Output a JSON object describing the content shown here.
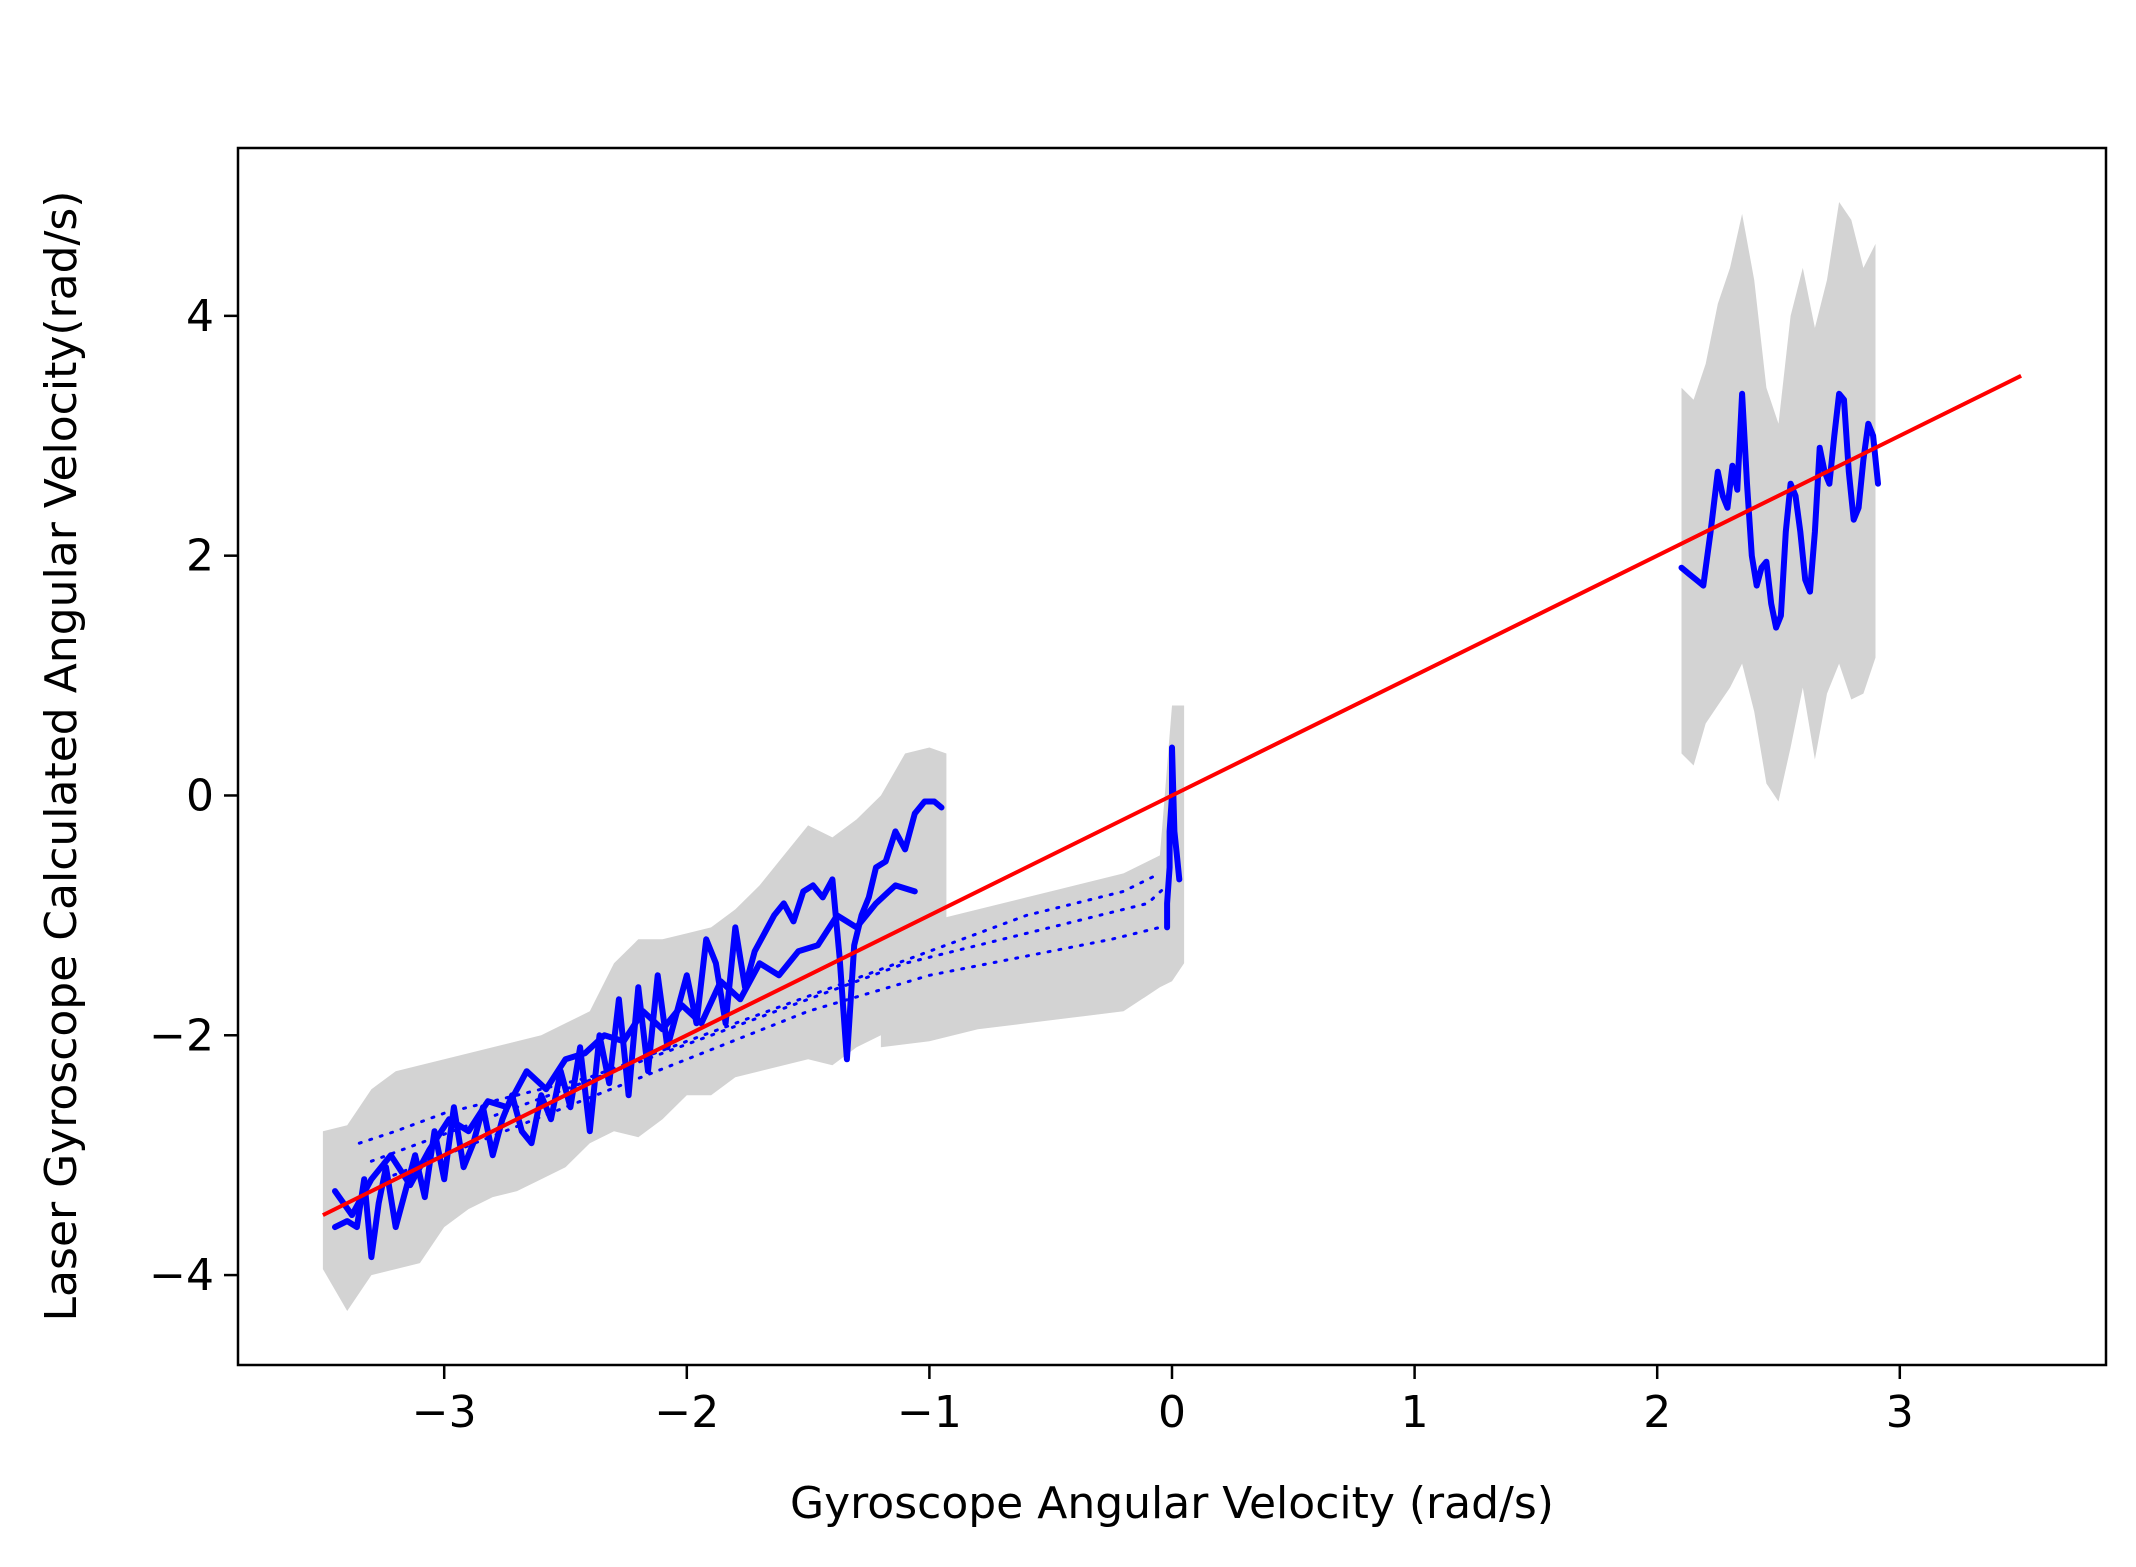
{
  "chart_data": {
    "type": "line",
    "title": "",
    "xlabel": "Gyroscope Angular Velocity (rad/s)",
    "ylabel": "Laser Gyroscope Calculated Angular Velocity(rad/s)",
    "xlim": [
      -3.85,
      3.85
    ],
    "ylim": [
      -4.75,
      5.4
    ],
    "x_ticks": [
      -3,
      -2,
      -1,
      0,
      1,
      2,
      3
    ],
    "x_tick_labels": [
      "−3",
      "−2",
      "−1",
      "0",
      "1",
      "2",
      "3"
    ],
    "y_ticks": [
      -4,
      -2,
      0,
      2,
      4
    ],
    "y_tick_labels": [
      "−4",
      "−2",
      "0",
      "2",
      "4"
    ],
    "grid": false,
    "legend": "none",
    "colors": {
      "band": "#d3d3d3",
      "measured": "#0000ff",
      "reference": "#ff0000"
    },
    "series": [
      {
        "role": "reference",
        "style": "line",
        "x": [
          -3.5,
          3.5
        ],
        "y": [
          -3.5,
          3.5
        ]
      },
      {
        "role": "band",
        "style": "band",
        "segments": [
          {
            "x": [
              -3.5,
              -3.4,
              -3.3,
              -3.2,
              -3.1,
              -3.0,
              -2.9,
              -2.8,
              -2.7,
              -2.6,
              -2.5,
              -2.4,
              -2.3,
              -2.2,
              -2.1,
              -2.0,
              -1.9,
              -1.8,
              -1.7,
              -1.6,
              -1.5,
              -1.4,
              -1.3,
              -1.2,
              -1.1,
              -1.0,
              -0.93
            ],
            "upper": [
              -2.8,
              -2.75,
              -2.45,
              -2.3,
              -2.25,
              -2.2,
              -2.15,
              -2.1,
              -2.05,
              -2.0,
              -1.9,
              -1.8,
              -1.4,
              -1.2,
              -1.2,
              -1.15,
              -1.1,
              -0.95,
              -0.75,
              -0.5,
              -0.25,
              -0.35,
              -0.2,
              0.0,
              0.35,
              0.4,
              0.35
            ],
            "lower": [
              -3.95,
              -4.3,
              -4.0,
              -3.95,
              -3.9,
              -3.6,
              -3.45,
              -3.35,
              -3.3,
              -3.2,
              -3.1,
              -2.9,
              -2.8,
              -2.85,
              -2.7,
              -2.5,
              -2.5,
              -2.35,
              -2.3,
              -2.25,
              -2.2,
              -2.25,
              -2.1,
              -2.0,
              -1.95,
              -1.95,
              -1.7
            ]
          },
          {
            "x": [
              -1.2,
              -1.0,
              -0.8,
              -0.6,
              -0.4,
              -0.2,
              -0.05,
              0.0,
              0.05
            ],
            "upper": [
              -1.15,
              -1.05,
              -0.95,
              -0.85,
              -0.75,
              -0.65,
              -0.5,
              0.75,
              0.75
            ],
            "lower": [
              -2.1,
              -2.05,
              -1.95,
              -1.9,
              -1.85,
              -1.8,
              -1.6,
              -1.55,
              -1.4
            ]
          },
          {
            "x": [
              2.1,
              2.15,
              2.2,
              2.25,
              2.3,
              2.35,
              2.4,
              2.45,
              2.5,
              2.55,
              2.6,
              2.65,
              2.7,
              2.75,
              2.8,
              2.85,
              2.9
            ],
            "upper": [
              3.4,
              3.3,
              3.6,
              4.1,
              4.4,
              4.85,
              4.3,
              3.4,
              3.1,
              4.0,
              4.4,
              3.9,
              4.3,
              4.95,
              4.8,
              4.4,
              4.6
            ],
            "lower": [
              0.35,
              0.25,
              0.6,
              0.75,
              0.9,
              1.1,
              0.7,
              0.1,
              -0.05,
              0.4,
              0.9,
              0.3,
              0.85,
              1.1,
              0.8,
              0.85,
              1.15
            ]
          }
        ]
      },
      {
        "role": "measured",
        "style": "thick",
        "x": [
          -3.45,
          -3.4,
          -3.36,
          -3.33,
          -3.3,
          -3.27,
          -3.24,
          -3.2,
          -3.16,
          -3.12,
          -3.08,
          -3.04,
          -3.0,
          -2.96,
          -2.92,
          -2.88,
          -2.84,
          -2.8,
          -2.76,
          -2.72,
          -2.68,
          -2.64,
          -2.6,
          -2.56,
          -2.52,
          -2.48,
          -2.44,
          -2.4,
          -2.36,
          -2.32,
          -2.28,
          -2.24,
          -2.2,
          -2.16,
          -2.12,
          -2.08,
          -2.04,
          -2.0,
          -1.96,
          -1.92,
          -1.88,
          -1.84,
          -1.8,
          -1.76,
          -1.72,
          -1.68,
          -1.64,
          -1.6,
          -1.56,
          -1.52,
          -1.48,
          -1.44,
          -1.4,
          -1.37,
          -1.34,
          -1.31,
          -1.28,
          -1.25,
          -1.22,
          -1.18,
          -1.14,
          -1.1,
          -1.06,
          -1.02,
          -0.98,
          -0.95
        ],
        "y": [
          -3.6,
          -3.55,
          -3.6,
          -3.2,
          -3.85,
          -3.4,
          -3.1,
          -3.6,
          -3.3,
          -3.0,
          -3.35,
          -2.8,
          -3.2,
          -2.6,
          -3.1,
          -2.9,
          -2.6,
          -3.0,
          -2.7,
          -2.5,
          -2.8,
          -2.9,
          -2.5,
          -2.7,
          -2.3,
          -2.6,
          -2.1,
          -2.8,
          -2.0,
          -2.4,
          -1.7,
          -2.5,
          -1.6,
          -2.3,
          -1.5,
          -2.1,
          -1.8,
          -1.5,
          -1.9,
          -1.2,
          -1.4,
          -1.9,
          -1.1,
          -1.6,
          -1.3,
          -1.15,
          -1.0,
          -0.9,
          -1.05,
          -0.8,
          -0.75,
          -0.85,
          -0.7,
          -1.35,
          -2.2,
          -1.25,
          -1.0,
          -0.85,
          -0.6,
          -0.55,
          -0.3,
          -0.45,
          -0.15,
          -0.05,
          -0.05,
          -0.1
        ]
      },
      {
        "role": "measured",
        "style": "thick",
        "x": [
          -3.45,
          -3.38,
          -3.3,
          -3.22,
          -3.14,
          -3.06,
          -2.98,
          -2.9,
          -2.82,
          -2.74,
          -2.66,
          -2.58,
          -2.5,
          -2.42,
          -2.34,
          -2.26,
          -2.18,
          -2.1,
          -2.02,
          -1.94,
          -1.86,
          -1.78,
          -1.7,
          -1.62,
          -1.54,
          -1.46,
          -1.38,
          -1.3,
          -1.22,
          -1.14,
          -1.06
        ],
        "y": [
          -3.3,
          -3.5,
          -3.2,
          -3.0,
          -3.25,
          -2.95,
          -2.7,
          -2.8,
          -2.55,
          -2.6,
          -2.3,
          -2.45,
          -2.2,
          -2.15,
          -2.0,
          -2.05,
          -1.8,
          -1.95,
          -1.75,
          -1.9,
          -1.55,
          -1.7,
          -1.4,
          -1.5,
          -1.3,
          -1.25,
          -1.0,
          -1.1,
          -0.9,
          -0.75,
          -0.8
        ]
      },
      {
        "role": "measured",
        "style": "dotted",
        "x": [
          -3.35,
          -3.2,
          -3.0,
          -2.8,
          -2.6,
          -2.4,
          -2.2,
          -2.0,
          -1.8,
          -1.6,
          -1.4,
          -1.2,
          -1.0,
          -0.8,
          -0.6,
          -0.4,
          -0.2,
          -0.05
        ],
        "y": [
          -2.9,
          -2.8,
          -2.65,
          -2.55,
          -2.45,
          -2.35,
          -2.2,
          -2.05,
          -1.9,
          -1.75,
          -1.6,
          -1.45,
          -1.3,
          -1.15,
          -1.0,
          -0.9,
          -0.8,
          -0.65
        ]
      },
      {
        "role": "measured",
        "style": "dotted",
        "x": [
          -3.3,
          -3.1,
          -2.9,
          -2.7,
          -2.5,
          -2.3,
          -2.1,
          -1.9,
          -1.7,
          -1.5,
          -1.3,
          -1.1,
          -0.9,
          -0.7,
          -0.5,
          -0.3,
          -0.1,
          -0.02
        ],
        "y": [
          -3.05,
          -2.9,
          -2.75,
          -2.6,
          -2.45,
          -2.3,
          -2.15,
          -2.0,
          -1.85,
          -1.7,
          -1.55,
          -1.4,
          -1.3,
          -1.2,
          -1.1,
          -1.0,
          -0.9,
          -0.75
        ]
      },
      {
        "role": "measured",
        "style": "dotted",
        "x": [
          -3.25,
          -3.0,
          -2.75,
          -2.5,
          -2.25,
          -2.0,
          -1.75,
          -1.5,
          -1.25,
          -1.0,
          -0.75,
          -0.5,
          -0.25,
          -0.05
        ],
        "y": [
          -3.2,
          -3.0,
          -2.8,
          -2.6,
          -2.4,
          -2.2,
          -2.0,
          -1.8,
          -1.65,
          -1.5,
          -1.4,
          -1.3,
          -1.2,
          -1.1
        ]
      },
      {
        "role": "measured",
        "style": "thick",
        "x": [
          -0.02,
          -0.02,
          -0.01,
          -0.01,
          0.0,
          0.0,
          0.01,
          0.02,
          0.03
        ],
        "y": [
          -1.1,
          -0.9,
          -0.6,
          -0.3,
          0.0,
          0.4,
          -0.3,
          -0.5,
          -0.7
        ]
      },
      {
        "role": "measured",
        "style": "thick",
        "x": [
          2.1,
          2.13,
          2.16,
          2.19,
          2.22,
          2.25,
          2.27,
          2.29,
          2.31,
          2.33,
          2.35,
          2.37,
          2.39,
          2.41,
          2.43,
          2.45,
          2.47,
          2.49,
          2.51,
          2.53,
          2.55,
          2.57,
          2.59,
          2.61,
          2.63,
          2.65,
          2.67,
          2.69,
          2.71,
          2.73,
          2.75,
          2.77,
          2.79,
          2.81,
          2.83,
          2.85,
          2.87,
          2.89,
          2.91
        ],
        "y": [
          1.9,
          1.85,
          1.8,
          1.75,
          2.2,
          2.7,
          2.5,
          2.4,
          2.75,
          2.55,
          3.35,
          2.6,
          2.0,
          1.75,
          1.9,
          1.95,
          1.6,
          1.4,
          1.5,
          2.2,
          2.6,
          2.5,
          2.2,
          1.8,
          1.7,
          2.2,
          2.9,
          2.7,
          2.6,
          3.0,
          3.35,
          3.3,
          2.7,
          2.3,
          2.4,
          2.8,
          3.1,
          3.0,
          2.6
        ]
      }
    ]
  }
}
